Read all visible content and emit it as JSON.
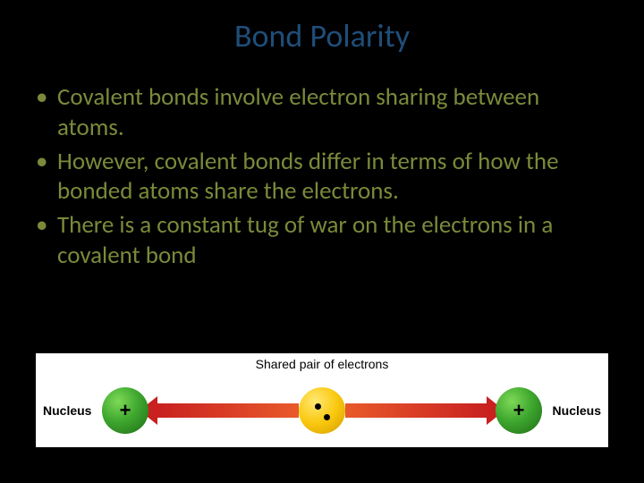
{
  "title": "Bond Polarity",
  "bullets": [
    "Covalent bonds involve electron sharing between atoms.",
    "However, covalent bonds differ in terms of how the bonded atoms share the electrons.",
    "There is a constant tug of war on the electrons in a covalent bond"
  ],
  "diagram": {
    "shared_label": "Shared pair of electrons",
    "nucleus_label": "Nucleus",
    "plus_symbol": "+",
    "colors": {
      "background": "#ffffff",
      "nucleus_green_light": "#7ed957",
      "nucleus_green_mid": "#3fa82f",
      "nucleus_green_dark": "#1e6b15",
      "electron_yellow_light": "#ffe873",
      "electron_yellow_mid": "#f9c80e",
      "electron_yellow_dark": "#d49b00",
      "arrow_red": "#c92020",
      "arrow_orange": "#e85a2a",
      "electron_dot": "#000000"
    }
  },
  "slide": {
    "background": "#000000",
    "title_color": "#1f4e79",
    "bullet_color": "#7a8a3a",
    "title_fontsize": 36,
    "bullet_fontsize": 27
  }
}
